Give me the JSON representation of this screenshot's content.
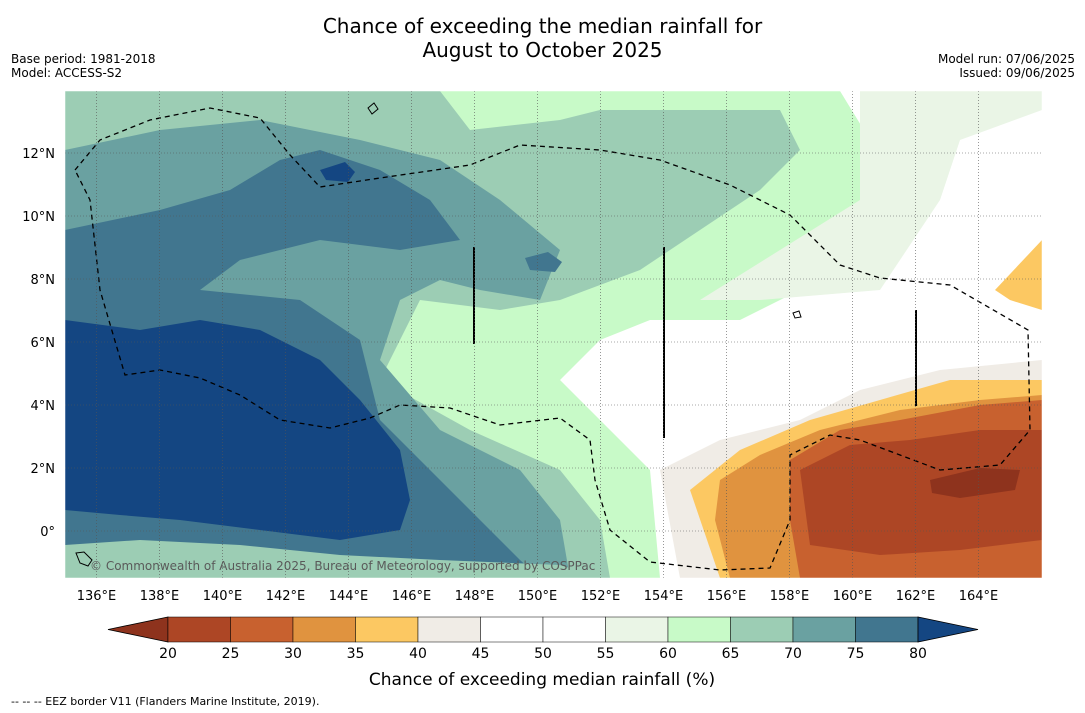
{
  "title_line1": "Chance of exceeding the median rainfall for",
  "title_line2": "August to October 2025",
  "base_period": "Base period: 1981-2018",
  "model": "Model: ACCESS-S2",
  "model_run": "Model run: 07/06/2025",
  "issued": "Issued: 09/06/2025",
  "credit": "© Commonwealth of Australia 2025, Bureau of Meteorology, supported by COSPPac",
  "footer": "-- -- -- EEZ border V11 (Flanders Marine Institute, 2019).",
  "lon_labels": [
    "136°E",
    "138°E",
    "140°E",
    "142°E",
    "144°E",
    "146°E",
    "148°E",
    "150°E",
    "152°E",
    "154°E",
    "156°E",
    "158°E",
    "160°E",
    "162°E",
    "164°E"
  ],
  "lat_labels": [
    "12°N",
    "10°N",
    "8°N",
    "6°N",
    "4°N",
    "2°N",
    "0°"
  ],
  "colorbar": {
    "title": "Chance of exceeding median rainfall (%)",
    "ticks": [
      "20",
      "25",
      "30",
      "35",
      "40",
      "45",
      "50",
      "55",
      "60",
      "65",
      "70",
      "75",
      "80"
    ],
    "colors": [
      "#ad4625",
      "#c8612f",
      "#e0933f",
      "#fcc862",
      "#f0ece6",
      "#ffffff",
      "#ffffff",
      "#eaf5e6",
      "#c8fac8",
      "#9ccdb4",
      "#6aa1a1",
      "#41768f",
      "#144682"
    ],
    "under_color": "#8e331d",
    "over_color": "#144682"
  }
}
